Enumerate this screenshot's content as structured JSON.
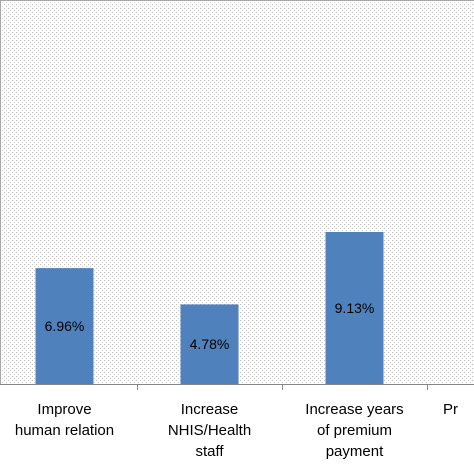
{
  "chart_data": {
    "type": "bar",
    "title": "",
    "xlabel": "",
    "ylabel": "",
    "ylim": [
      0,
      13
    ],
    "grid": false,
    "bar_color": "#4f81bd",
    "plot_background": "dotted-grey",
    "categories": [
      [
        "Improve",
        "human relation"
      ],
      [
        "Increase",
        "NHIS/Health",
        "staff"
      ],
      [
        "Increase years",
        "of premium",
        "payment"
      ],
      [
        "Pr"
      ]
    ],
    "values": [
      6.96,
      4.78,
      9.13,
      null
    ],
    "data_labels": [
      "6.96%",
      "4.78%",
      "9.13%",
      ""
    ]
  }
}
